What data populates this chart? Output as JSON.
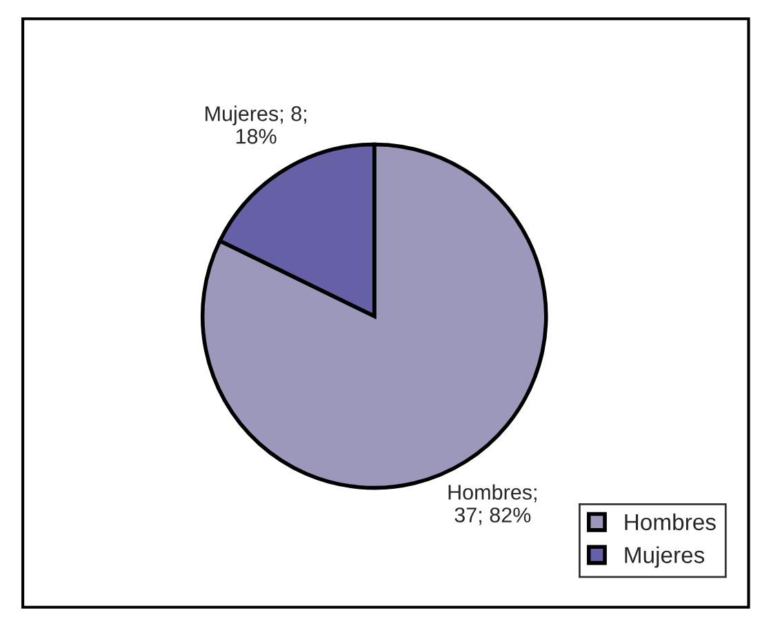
{
  "chart_data": {
    "type": "pie",
    "categories": [
      "Hombres",
      "Mujeres"
    ],
    "values": [
      37,
      8
    ],
    "colors": [
      "#9c98bc",
      "#6660a6"
    ],
    "value_labels": [
      "Hombres;\n37; 82%",
      "Mujeres; 8;\n18%"
    ],
    "legend": "bottom right"
  }
}
